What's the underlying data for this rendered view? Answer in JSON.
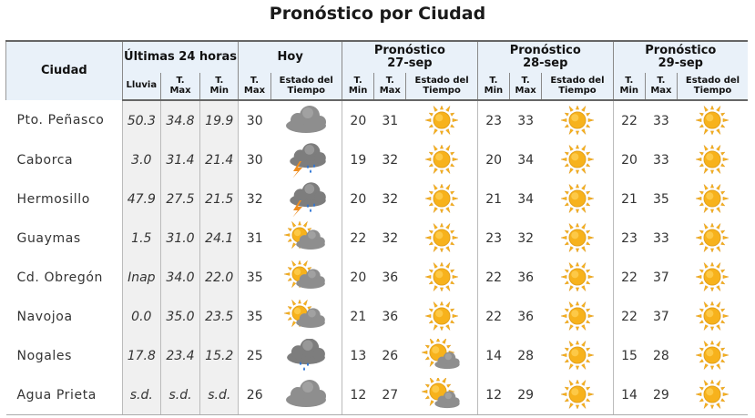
{
  "title": "Pronóstico por Ciudad",
  "headers": {
    "ciudad": "Ciudad",
    "ultimas": "Últimas 24 horas",
    "hoy": "Hoy",
    "dias": [
      {
        "line1": "Pronóstico",
        "line2": "27-sep"
      },
      {
        "line1": "Pronóstico",
        "line2": "28-sep"
      },
      {
        "line1": "Pronóstico",
        "line2": "29-sep"
      }
    ],
    "sub": {
      "lluvia": "Lluvia",
      "tmax": [
        "T.",
        "Max"
      ],
      "tmin": [
        "T.",
        "Min"
      ],
      "estado": [
        "Estado del",
        "Tiempo"
      ]
    }
  },
  "rows": [
    {
      "city": "Pto. Peñasco",
      "lluvia": "50.3",
      "tmax24": "34.8",
      "tmin24": "19.9",
      "hoy_tmax": "30",
      "hoy_icon": "cloudy-icon",
      "d1_min": "20",
      "d1_max": "31",
      "d1_icon": "sun-icon",
      "d2_min": "23",
      "d2_max": "33",
      "d2_icon": "sun-icon",
      "d3_min": "22",
      "d3_max": "33",
      "d3_icon": "sun-icon"
    },
    {
      "city": "Caborca",
      "lluvia": "3.0",
      "tmax24": "31.4",
      "tmin24": "21.4",
      "hoy_tmax": "30",
      "hoy_icon": "thunderstorm-icon",
      "d1_min": "19",
      "d1_max": "32",
      "d1_icon": "sun-icon",
      "d2_min": "20",
      "d2_max": "34",
      "d2_icon": "sun-icon",
      "d3_min": "20",
      "d3_max": "33",
      "d3_icon": "sun-icon"
    },
    {
      "city": "Hermosillo",
      "lluvia": "47.9",
      "tmax24": "27.5",
      "tmin24": "21.5",
      "hoy_tmax": "32",
      "hoy_icon": "thunderstorm-icon",
      "d1_min": "20",
      "d1_max": "32",
      "d1_icon": "sun-icon",
      "d2_min": "21",
      "d2_max": "34",
      "d2_icon": "sun-icon",
      "d3_min": "21",
      "d3_max": "35",
      "d3_icon": "sun-icon"
    },
    {
      "city": "Guaymas",
      "lluvia": "1.5",
      "tmax24": "31.0",
      "tmin24": "24.1",
      "hoy_tmax": "31",
      "hoy_icon": "partly-cloudy-icon",
      "d1_min": "22",
      "d1_max": "32",
      "d1_icon": "sun-icon",
      "d2_min": "23",
      "d2_max": "32",
      "d2_icon": "sun-icon",
      "d3_min": "23",
      "d3_max": "33",
      "d3_icon": "sun-icon"
    },
    {
      "city": "Cd. Obregón",
      "lluvia": "Inap",
      "tmax24": "34.0",
      "tmin24": "22.0",
      "hoy_tmax": "35",
      "hoy_icon": "partly-cloudy-icon",
      "d1_min": "20",
      "d1_max": "36",
      "d1_icon": "sun-icon",
      "d2_min": "22",
      "d2_max": "36",
      "d2_icon": "sun-icon",
      "d3_min": "22",
      "d3_max": "37",
      "d3_icon": "sun-icon"
    },
    {
      "city": "Navojoa",
      "lluvia": "0.0",
      "tmax24": "35.0",
      "tmin24": "23.5",
      "hoy_tmax": "35",
      "hoy_icon": "partly-cloudy-icon",
      "d1_min": "21",
      "d1_max": "36",
      "d1_icon": "sun-icon",
      "d2_min": "22",
      "d2_max": "36",
      "d2_icon": "sun-icon",
      "d3_min": "22",
      "d3_max": "37",
      "d3_icon": "sun-icon"
    },
    {
      "city": "Nogales",
      "lluvia": "17.8",
      "tmax24": "23.4",
      "tmin24": "15.2",
      "hoy_tmax": "25",
      "hoy_icon": "rain-icon",
      "d1_min": "13",
      "d1_max": "26",
      "d1_icon": "sun-cloud-icon",
      "d2_min": "14",
      "d2_max": "28",
      "d2_icon": "sun-icon",
      "d3_min": "15",
      "d3_max": "28",
      "d3_icon": "sun-icon"
    },
    {
      "city": "Agua Prieta",
      "lluvia": "s.d.",
      "tmax24": "s.d.",
      "tmin24": "s.d.",
      "hoy_tmax": "26",
      "hoy_icon": "cloudy-icon",
      "d1_min": "12",
      "d1_max": "27",
      "d1_icon": "sun-cloud-icon",
      "d2_min": "12",
      "d2_max": "29",
      "d2_icon": "sun-icon",
      "d3_min": "14",
      "d3_max": "29",
      "d3_icon": "sun-icon"
    }
  ],
  "colors": {
    "header_bg": "#e9f1f9",
    "history_bg": "#f0f0f0",
    "sun": "#f7b21c",
    "cloud": "#8e8e8e",
    "bolt": "#ef8d1e",
    "rain": "#2a73d6"
  }
}
